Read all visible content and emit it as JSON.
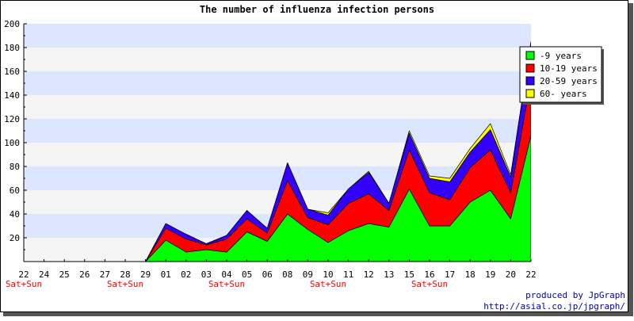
{
  "chart_data": {
    "type": "area",
    "stacked": true,
    "title": "The number of influenza infection persons",
    "xlabel": "",
    "ylabel": "",
    "ylim": [
      0,
      200
    ],
    "y_ticks": [
      20,
      40,
      60,
      80,
      100,
      120,
      140,
      160,
      180,
      200
    ],
    "grid": "horizontal bands",
    "legend_position": "top-right",
    "categories": [
      "22",
      "24",
      "25",
      "26",
      "27",
      "28",
      "29",
      "01",
      "02",
      "03",
      "04",
      "05",
      "06",
      "08",
      "09",
      "10",
      "11",
      "12",
      "13",
      "15",
      "16",
      "17",
      "18",
      "19",
      "20",
      "22"
    ],
    "day_notes": [
      {
        "category_index": 0,
        "text": "Sat+Sun"
      },
      {
        "category_index": 5,
        "text": "Sat+Sun"
      },
      {
        "category_index": 10,
        "text": "Sat+Sun"
      },
      {
        "category_index": 15,
        "text": "Sat+Sun"
      },
      {
        "category_index": 20,
        "text": "Sat+Sun"
      }
    ],
    "series": [
      {
        "name": "-9 years",
        "color": "#00ff00",
        "values": [
          0,
          0,
          0,
          0,
          0,
          0,
          0,
          18,
          8,
          10,
          8,
          25,
          17,
          40,
          27,
          16,
          26,
          32,
          29,
          61,
          30,
          30,
          50,
          60,
          36,
          106
        ]
      },
      {
        "name": "10-19 years",
        "color": "#ff0000",
        "values": [
          0,
          0,
          0,
          0,
          0,
          0,
          0,
          10,
          11,
          4,
          11,
          11,
          7,
          28,
          10,
          15,
          23,
          25,
          14,
          33,
          28,
          22,
          29,
          34,
          22,
          47
        ]
      },
      {
        "name": "20-59 years",
        "color": "#3300ff",
        "values": [
          0,
          0,
          0,
          0,
          0,
          0,
          0,
          4,
          4,
          1,
          3,
          7,
          4,
          15,
          7,
          8,
          12,
          18,
          6,
          14,
          12,
          15,
          13,
          17,
          13,
          32
        ]
      },
      {
        "name": "60- years",
        "color": "#ffff00",
        "values": [
          0,
          0,
          0,
          0,
          0,
          0,
          0,
          0,
          0,
          0,
          0,
          0,
          0,
          0,
          0,
          2,
          0,
          1,
          0,
          2,
          2,
          3,
          3,
          5,
          2,
          0
        ]
      }
    ]
  },
  "credit": {
    "line1": "produced by JpGraph",
    "line2": "http://asial.co.jp/jpgraph/"
  }
}
